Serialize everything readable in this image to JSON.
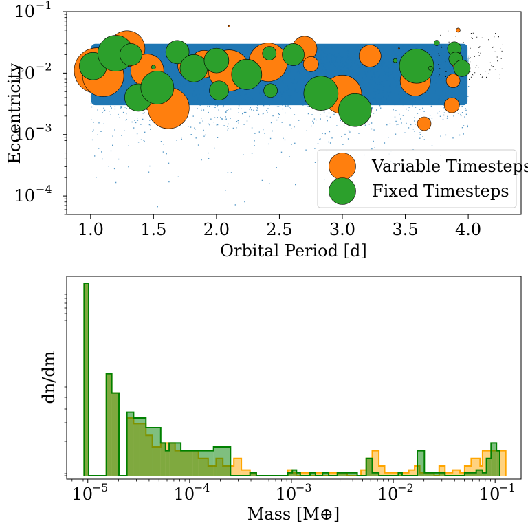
{
  "chart_data": [
    {
      "type": "scatter",
      "xlabel": "Orbital Period [d]",
      "ylabel": "Eccentricity",
      "xlim": [
        0.81,
        4.42
      ],
      "ylim": [
        5e-05,
        0.1
      ],
      "yscale": "log",
      "xticks": [
        "1.0",
        "1.5",
        "2.0",
        "2.5",
        "3.0",
        "3.5",
        "4.0"
      ],
      "xtick_values": [
        1.0,
        1.5,
        2.0,
        2.5,
        3.0,
        3.5,
        4.0
      ],
      "ytick_exponents": [
        "-1",
        "-2",
        "-3",
        "-4"
      ],
      "ytick_values": [
        0.1,
        0.01,
        0.001,
        0.0001
      ],
      "legend": {
        "placement": "lower-right",
        "entries": [
          "Variable Timesteps",
          "Fixed Timesteps"
        ]
      },
      "background_cloud": {
        "color": "#1f77b4",
        "x_range": [
          1.0,
          4.0
        ],
        "y_center": 0.01
      },
      "series": [
        {
          "name": "Variable Timesteps",
          "color": "#ff7f0e",
          "points": [
            {
              "x": 1.05,
              "y": 0.011,
              "size": 33
            },
            {
              "x": 1.1,
              "y": 0.009,
              "size": 30
            },
            {
              "x": 1.29,
              "y": 0.025,
              "size": 26
            },
            {
              "x": 1.45,
              "y": 0.011,
              "size": 24
            },
            {
              "x": 1.5,
              "y": 0.004,
              "size": 20
            },
            {
              "x": 1.62,
              "y": 0.0027,
              "size": 30
            },
            {
              "x": 1.78,
              "y": 0.013,
              "size": 16
            },
            {
              "x": 1.9,
              "y": 0.014,
              "size": 20
            },
            {
              "x": 2.1,
              "y": 0.011,
              "size": 30
            },
            {
              "x": 2.41,
              "y": 0.015,
              "size": 28
            },
            {
              "x": 2.7,
              "y": 0.025,
              "size": 18
            },
            {
              "x": 2.75,
              "y": 0.014,
              "size": 11
            },
            {
              "x": 3.0,
              "y": 0.0045,
              "size": 28
            },
            {
              "x": 3.22,
              "y": 0.019,
              "size": 16
            },
            {
              "x": 3.58,
              "y": 0.0075,
              "size": 22
            },
            {
              "x": 3.65,
              "y": 0.0015,
              "size": 10
            },
            {
              "x": 3.88,
              "y": 0.0075,
              "size": 10
            },
            {
              "x": 3.87,
              "y": 0.003,
              "size": 11
            },
            {
              "x": 3.9,
              "y": 0.02,
              "size": 7
            },
            {
              "x": 3.9,
              "y": 0.014,
              "size": 5
            },
            {
              "x": 3.92,
              "y": 0.05,
              "size": 3
            },
            {
              "x": 2.1,
              "y": 0.058,
              "size": 1.2
            },
            {
              "x": 3.45,
              "y": 0.025,
              "size": 1.2
            }
          ]
        },
        {
          "name": "Fixed Timesteps",
          "color": "#2ca02c",
          "points": [
            {
              "x": 1.02,
              "y": 0.013,
              "size": 20
            },
            {
              "x": 1.2,
              "y": 0.021,
              "size": 26
            },
            {
              "x": 1.32,
              "y": 0.02,
              "size": 16
            },
            {
              "x": 1.38,
              "y": 0.004,
              "size": 20
            },
            {
              "x": 1.53,
              "y": 0.0058,
              "size": 24
            },
            {
              "x": 1.69,
              "y": 0.022,
              "size": 17
            },
            {
              "x": 1.82,
              "y": 0.012,
              "size": 20
            },
            {
              "x": 2.0,
              "y": 0.016,
              "size": 18
            },
            {
              "x": 2.02,
              "y": 0.0052,
              "size": 14
            },
            {
              "x": 2.24,
              "y": 0.0095,
              "size": 22
            },
            {
              "x": 2.42,
              "y": 0.021,
              "size": 10
            },
            {
              "x": 2.43,
              "y": 0.0052,
              "size": 10
            },
            {
              "x": 2.61,
              "y": 0.02,
              "size": 16
            },
            {
              "x": 2.83,
              "y": 0.0047,
              "size": 25
            },
            {
              "x": 3.1,
              "y": 0.0025,
              "size": 24
            },
            {
              "x": 3.59,
              "y": 0.013,
              "size": 25
            },
            {
              "x": 3.89,
              "y": 0.025,
              "size": 10
            },
            {
              "x": 3.9,
              "y": 0.017,
              "size": 10
            },
            {
              "x": 3.95,
              "y": 0.012,
              "size": 12
            },
            {
              "x": 3.75,
              "y": 0.031,
              "size": 4
            },
            {
              "x": 3.7,
              "y": 0.012,
              "size": 3
            },
            {
              "x": 3.42,
              "y": 0.016,
              "size": 3
            },
            {
              "x": 1.5,
              "y": 0.0125,
              "size": 3
            }
          ]
        }
      ]
    },
    {
      "type": "bar",
      "xlabel": "Mass [M⊕]",
      "ylabel": "dn/dm",
      "xscale": "log",
      "yscale": "log",
      "xlim": [
        6.2e-06,
        0.18
      ],
      "xtick_exponents": [
        "-5",
        "-4",
        "-3",
        "-2",
        "-1"
      ],
      "xtick_values": [
        1e-05,
        0.0001,
        0.001,
        0.01,
        0.1
      ],
      "series": [
        {
          "name": "Fixed Timesteps",
          "color": "#008000",
          "edges": [
            9.2e-06,
            1.02e-05,
            1.52e-05,
            1.72e-05,
            2.02e-05,
            2.42e-05,
            2.82e-05,
            3.22e-05,
            3.72e-05,
            5.2e-05,
            5.8e-05,
            6.3e-05,
            7.2e-05,
            8.2e-05,
            9.2e-05,
            0.000107,
            0.000122,
            0.000152,
            0.000172,
            0.000252,
            0.000392,
            0.000452,
            0.000472,
            0.00092,
            0.00102,
            0.00112,
            0.00122,
            0.00152,
            0.00172,
            0.00202,
            0.00232,
            0.00282,
            0.00352,
            0.00442,
            0.00482,
            0.00542,
            0.00622,
            0.00722,
            0.00822,
            0.00992,
            0.0112,
            0.0122,
            0.0152,
            0.0172,
            0.0202,
            0.0252,
            0.0322,
            0.0382,
            0.0502,
            0.0652,
            0.0752,
            0.0822,
            0.0912,
            0.1032,
            0.1112
          ],
          "densities": [
            1.0,
            0,
            0.53,
            0.43,
            0,
            0.33,
            0.3,
            0.3,
            0.25,
            0.17,
            0.13,
            0.17,
            0.17,
            0.13,
            0.13,
            0.13,
            0.13,
            0.13,
            0.15,
            0,
            0.015,
            0,
            0,
            0.015,
            0.03,
            0.015,
            0,
            0.015,
            0,
            0.015,
            0,
            0.015,
            0.015,
            0,
            0,
            0.09,
            0.015,
            0,
            0,
            0,
            0.015,
            0,
            0,
            0.13,
            0.015,
            0.015,
            0,
            0,
            0.015,
            0.03,
            0.015,
            0.09,
            0.17,
            0.13
          ]
        },
        {
          "name": "Variable Timesteps",
          "color": "#ffa500",
          "edges": [
            9.2e-06,
            1.02e-05,
            1.52e-05,
            1.72e-05,
            2.02e-05,
            2.42e-05,
            2.82e-05,
            3.22e-05,
            3.72e-05,
            4.3e-05,
            5.2e-05,
            5.8e-05,
            6.3e-05,
            7.2e-05,
            8.2e-05,
            9.2e-05,
            0.000107,
            0.000122,
            0.000152,
            0.000182,
            0.000212,
            0.000272,
            0.000322,
            0.000392,
            0.000452,
            0.00092,
            0.00102,
            0.00112,
            0.00122,
            0.00152,
            0.00172,
            0.00202,
            0.00232,
            0.00282,
            0.00352,
            0.00442,
            0.00482,
            0.00542,
            0.00622,
            0.00722,
            0.00822,
            0.00892,
            0.00992,
            0.0112,
            0.0122,
            0.0142,
            0.0162,
            0.0182,
            0.0202,
            0.0252,
            0.0282,
            0.0322,
            0.0382,
            0.0452,
            0.0502,
            0.0582,
            0.0652,
            0.0712,
            0.0752,
            0.0822,
            0.0912,
            0.1032,
            0.1112,
            0.1272
          ],
          "densities": [
            1.0,
            0,
            0.53,
            0.43,
            0,
            0.3,
            0.27,
            0.27,
            0.21,
            0.15,
            0.17,
            0.17,
            0.17,
            0.13,
            0.13,
            0.13,
            0.13,
            0.09,
            0.05,
            0.09,
            0.05,
            0.09,
            0.03,
            0.015,
            0,
            0.03,
            0.015,
            0,
            0.015,
            0,
            0.015,
            0,
            0.015,
            0.015,
            0,
            0,
            0.03,
            0.09,
            0.13,
            0.05,
            0.015,
            0.015,
            0.015,
            0,
            0.015,
            0.03,
            0.05,
            0.015,
            0.015,
            0,
            0.05,
            0.015,
            0.03,
            0.015,
            0.05,
            0.09,
            0.09,
            0.05,
            0.13,
            0.13,
            0.13,
            0.13,
            0.13
          ]
        }
      ]
    }
  ]
}
